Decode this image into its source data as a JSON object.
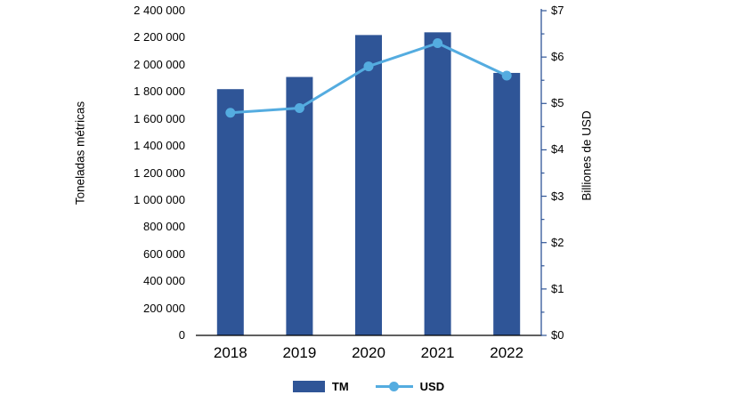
{
  "chart_data": {
    "type": "bar",
    "subtype": "bar+line dual axis",
    "categories": [
      "2018",
      "2019",
      "2020",
      "2021",
      "2022"
    ],
    "series": [
      {
        "name": "TM",
        "type": "bar",
        "axis": "left",
        "color": "#2F5597",
        "values": [
          1820000,
          1910000,
          2220000,
          2240000,
          1940000
        ]
      },
      {
        "name": "USD",
        "type": "line",
        "axis": "right",
        "color": "#54ACE0",
        "values": [
          4.8,
          4.9,
          5.8,
          6.3,
          5.6
        ]
      }
    ],
    "left_axis": {
      "label": "Toneladas métricas",
      "min": 0,
      "max": 2400000,
      "tick_step": 200000,
      "ticks": [
        "0",
        "200 000",
        "400 000",
        "600 000",
        "800 000",
        "1 000 000",
        "1 200 000",
        "1 400 000",
        "1 600 000",
        "1 800 000",
        "2 000 000",
        "2 200 000",
        "2 400 000"
      ]
    },
    "right_axis": {
      "label": "Billiones de USD",
      "min": 0,
      "max": 7,
      "tick_step": 1,
      "ticks": [
        "$0",
        "$1",
        "$2",
        "$3",
        "$4",
        "$5",
        "$6",
        "$7"
      ],
      "axis_color": "#2F5597"
    },
    "grid": false,
    "legend_position": "bottom",
    "legend": [
      {
        "label": "TM",
        "swatch": "bar",
        "color": "#2F5597"
      },
      {
        "label": "USD",
        "swatch": "line-marker",
        "color": "#54ACE0"
      }
    ]
  }
}
